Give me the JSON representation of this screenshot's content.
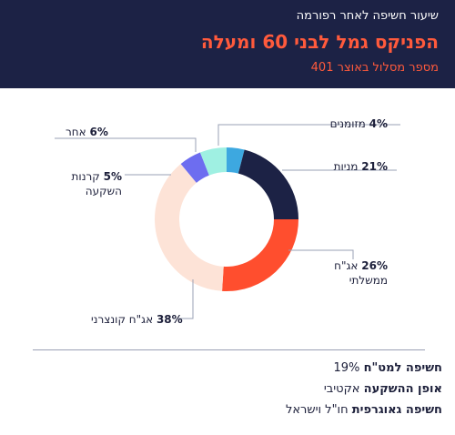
{
  "header": {
    "subtitle": "שיעור חשיפה לאחר רפורמה",
    "title": "הפניקס גמל לבני 60 ומעלה",
    "fund_number": "מספר מסלול באוצר 401"
  },
  "chart_data": {
    "type": "pie",
    "donut": true,
    "legend": "callout-labels",
    "slices": [
      {
        "label": "מזומנים",
        "value": 4,
        "pct_label": "4%",
        "color": "#3da8e0"
      },
      {
        "label": "מניות",
        "value": 21,
        "pct_label": "21%",
        "color": "#1c2245"
      },
      {
        "label": "אג\"ח ממשלתי",
        "value": 26,
        "pct_label": "26%",
        "color": "#ff4e2e"
      },
      {
        "label": "אג\"ח קונצרני",
        "value": 38,
        "pct_label": "38%",
        "color": "#fde3d7"
      },
      {
        "label": "קרנות השקעה",
        "value": 5,
        "pct_label": "5%",
        "color": "#6d6df0"
      },
      {
        "label": "אחר",
        "value": 6,
        "pct_label": "6%",
        "color": "#9ff0e2"
      }
    ]
  },
  "labels": {
    "cash": {
      "pct": "4%",
      "name": "מזומנים"
    },
    "stocks": {
      "pct": "21%",
      "name": "מניות"
    },
    "gov_bonds": {
      "pct": "26%",
      "name_line1": "אג\"ח",
      "name_line2": "ממשלתי"
    },
    "corp_bonds": {
      "pct": "38%",
      "name": "אג\"ח קונצרני"
    },
    "funds": {
      "pct": "5%",
      "name_line1": "קרנות",
      "name_line2": "השקעה"
    },
    "other": {
      "pct": "6%",
      "name": "אחר"
    }
  },
  "info": {
    "forex_label": "חשיפה למט\"ח",
    "forex_value": "19%",
    "mode_label": "אופן ההשקעה",
    "mode_value": "אקטיבי",
    "geo_label": "חשיפה גאוגרפית",
    "geo_value": "חו\"ל וישראל"
  }
}
